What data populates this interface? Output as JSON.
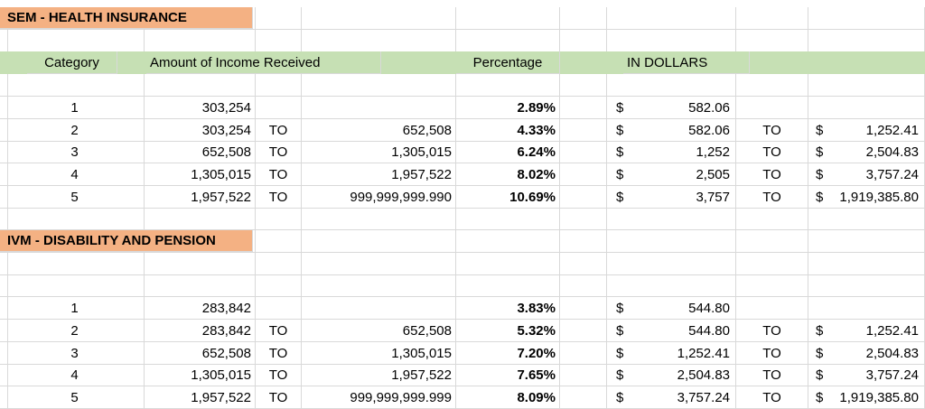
{
  "sections": [
    {
      "title": "SEM - HEALTH INSURANCE",
      "rows": [
        {
          "cat": "1",
          "from": "303,254",
          "to_word": "",
          "to": "",
          "pct": "2.89%",
          "d_from": "582.06",
          "to_word2": "",
          "d_to": ""
        },
        {
          "cat": "2",
          "from": "303,254",
          "to_word": "TO",
          "to": "652,508",
          "pct": "4.33%",
          "d_from": "582.06",
          "to_word2": "TO",
          "d_to": "1,252.41"
        },
        {
          "cat": "3",
          "from": "652,508",
          "to_word": "TO",
          "to": "1,305,015",
          "pct": "6.24%",
          "d_from": "1,252",
          "to_word2": "TO",
          "d_to": "2,504.83"
        },
        {
          "cat": "4",
          "from": "1,305,015",
          "to_word": "TO",
          "to": "1,957,522",
          "pct": "8.02%",
          "d_from": "2,505",
          "to_word2": "TO",
          "d_to": "3,757.24"
        },
        {
          "cat": "5",
          "from": "1,957,522",
          "to_word": "TO",
          "to": "999,999,999.990",
          "pct": "10.69%",
          "d_from": "3,757",
          "to_word2": "TO",
          "d_to": "1,919,385.80"
        }
      ]
    },
    {
      "title": "IVM - DISABILITY AND PENSION",
      "rows": [
        {
          "cat": "1",
          "from": "283,842",
          "to_word": "",
          "to": "",
          "pct": "3.83%",
          "d_from": "544.80",
          "to_word2": "",
          "d_to": ""
        },
        {
          "cat": "2",
          "from": "283,842",
          "to_word": "TO",
          "to": "652,508",
          "pct": "5.32%",
          "d_from": "544.80",
          "to_word2": "TO",
          "d_to": "1,252.41"
        },
        {
          "cat": "3",
          "from": "652,508",
          "to_word": "TO",
          "to": "1,305,015",
          "pct": "7.20%",
          "d_from": "1,252.41",
          "to_word2": "TO",
          "d_to": "2,504.83"
        },
        {
          "cat": "4",
          "from": "1,305,015",
          "to_word": "TO",
          "to": "1,957,522",
          "pct": "7.65%",
          "d_from": "2,504.83",
          "to_word2": "TO",
          "d_to": "3,757.24"
        },
        {
          "cat": "5",
          "from": "1,957,522",
          "to_word": "TO",
          "to": "999,999,999.999",
          "pct": "8.09%",
          "d_from": "3,757.24",
          "to_word2": "TO",
          "d_to": "1,919,385.80"
        }
      ]
    }
  ],
  "header": {
    "category": "Category",
    "income": "Amount of Income Received",
    "percentage": "Percentage",
    "dollars": "IN DOLLARS"
  },
  "currency_symbol": "$",
  "colors": {
    "section_title_bg": "#f4b183",
    "header_bg": "#c6e0b4",
    "gridline": "#d9d9d9"
  }
}
